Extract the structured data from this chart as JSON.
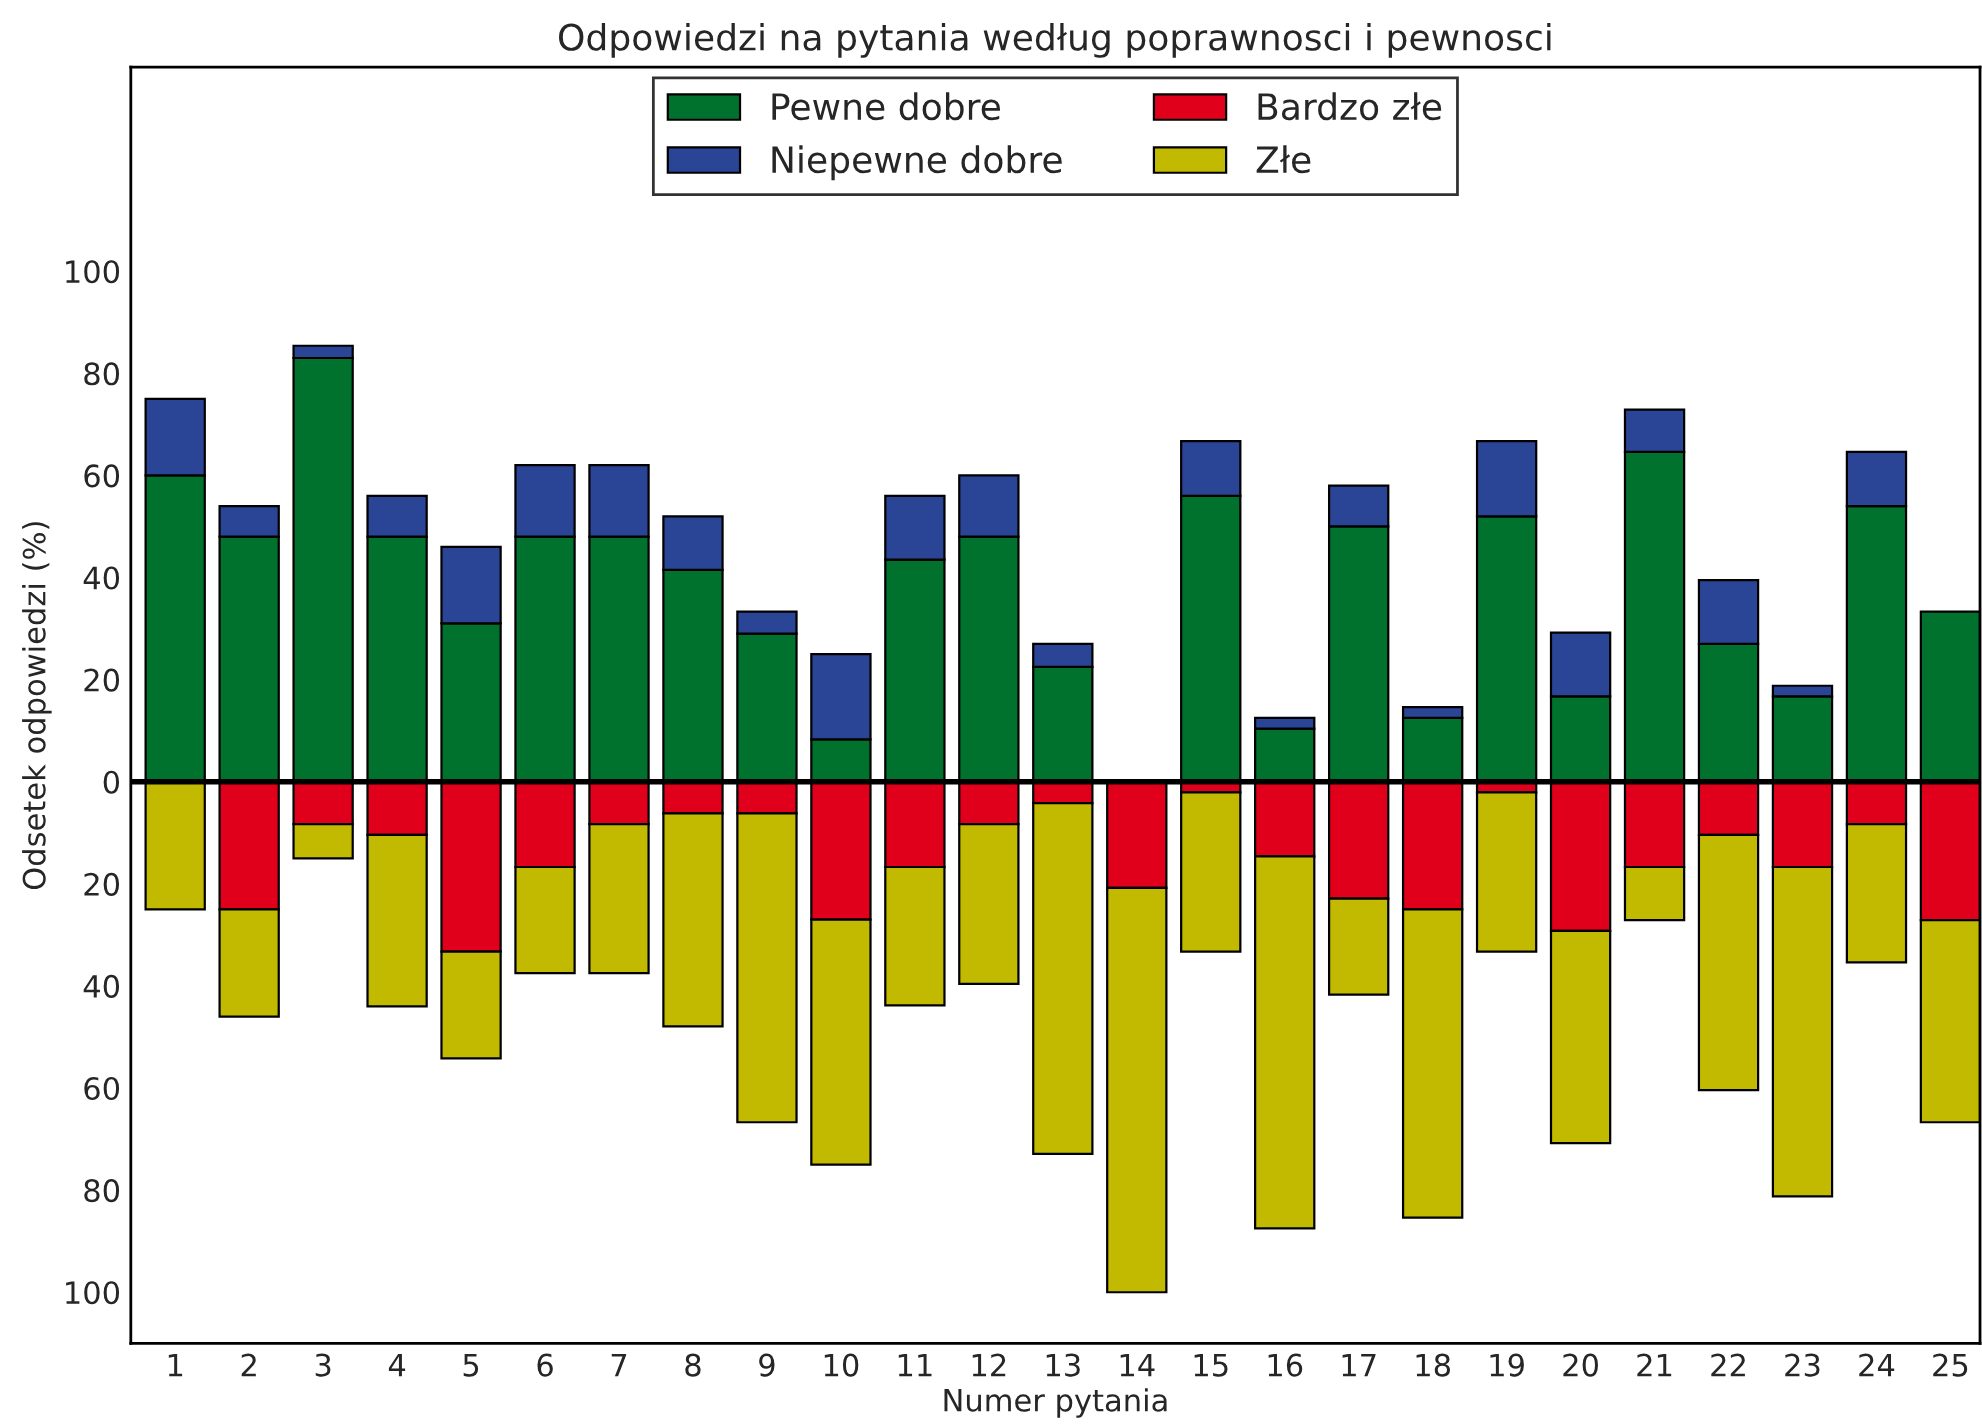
{
  "chart_data": {
    "type": "bar",
    "title": "Odpowiedzi na pytania według poprawnosci i pewnosci",
    "xlabel": "Numer pytania",
    "ylabel": "Odsetek odpowiedzi (%)",
    "categories": [
      "1",
      "2",
      "3",
      "4",
      "5",
      "6",
      "7",
      "8",
      "9",
      "10",
      "11",
      "12",
      "13",
      "14",
      "15",
      "16",
      "17",
      "18",
      "19",
      "20",
      "21",
      "22",
      "23",
      "24",
      "25"
    ],
    "stacked": true,
    "series": [
      {
        "name": "Pewne dobre",
        "color": "#00722e",
        "values": [
          60,
          48,
          83,
          48,
          31,
          48,
          48,
          41.5,
          29,
          8.3,
          43.5,
          48,
          22.5,
          0,
          56,
          10.4,
          50,
          12.5,
          52,
          16.7,
          64.6,
          27,
          16.7,
          54,
          33.3
        ]
      },
      {
        "name": "Niepewne dobre",
        "color": "#2b4596",
        "values": [
          15,
          6,
          2.4,
          8,
          15,
          14,
          14,
          10.5,
          4.3,
          16.7,
          12.5,
          12,
          4.5,
          0,
          10.7,
          2.1,
          8,
          2.1,
          14.7,
          12.5,
          8.3,
          12.5,
          2.1,
          10.6,
          0
        ]
      },
      {
        "name": "Bardzo złe",
        "color": "#e0001b",
        "values": [
          0,
          -25,
          -8.3,
          -10.4,
          -33.3,
          -16.7,
          -8.3,
          -6.2,
          -6.2,
          -27,
          -16.7,
          -8.3,
          -4.2,
          -20.8,
          -2.1,
          -14.6,
          -22.9,
          -25,
          -2.1,
          -29.2,
          -16.7,
          -10.4,
          -16.7,
          -8.3,
          -27.1
        ]
      },
      {
        "name": "Złe",
        "color": "#c2ba00",
        "values": [
          -25,
          -21,
          -6.7,
          -33.6,
          -20.9,
          -20.8,
          -29.2,
          -41.7,
          -60.5,
          -48,
          -27.1,
          -31.3,
          -68.7,
          -79.2,
          -31.2,
          -72.9,
          -18.8,
          -60.4,
          -31.2,
          -41.6,
          -10.4,
          -50,
          -64.5,
          -27.1,
          -39.6
        ]
      }
    ],
    "ylim": [
      -110,
      140
    ],
    "yticks": [
      {
        "value": -100,
        "label": "100"
      },
      {
        "value": -80,
        "label": "80"
      },
      {
        "value": -60,
        "label": "60"
      },
      {
        "value": -40,
        "label": "40"
      },
      {
        "value": -20,
        "label": "20"
      },
      0,
      20,
      40,
      60,
      80,
      100
    ],
    "ref_lines": [
      {
        "axis": "y",
        "value": 0,
        "color": "#000000"
      }
    ],
    "grid": false,
    "legend": "top"
  }
}
